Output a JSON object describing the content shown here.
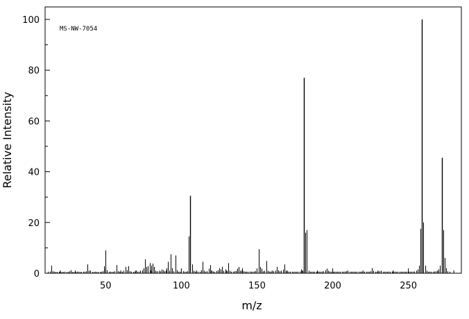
{
  "chart_data": {
    "type": "bar",
    "title": "",
    "annotation": "MS-NW-7054",
    "xlabel": "m/z",
    "ylabel": "Relative Intensity",
    "xlim": [
      10,
      285
    ],
    "ylim": [
      0,
      100
    ],
    "x_ticks": [
      50,
      100,
      150,
      200,
      250
    ],
    "y_ticks": [
      0,
      20,
      40,
      60,
      80,
      100
    ],
    "grid": false,
    "series": [
      {
        "values": [
          [
            12,
            0.6
          ],
          [
            13,
            0.7
          ],
          [
            14,
            3.0
          ],
          [
            15,
            0.8
          ],
          [
            16,
            0.6
          ],
          [
            17,
            0.5
          ],
          [
            18,
            0.5
          ],
          [
            19,
            0.5
          ],
          [
            20,
            0.6
          ],
          [
            21,
            0.5
          ],
          [
            22,
            0.5
          ],
          [
            23,
            0.6
          ],
          [
            24,
            0.5
          ],
          [
            25,
            0.5
          ],
          [
            26,
            0.8
          ],
          [
            27,
            1.2
          ],
          [
            28,
            0.5
          ],
          [
            29,
            0.5
          ],
          [
            30,
            0.5
          ],
          [
            31,
            0.6
          ],
          [
            32,
            0.6
          ],
          [
            33,
            0.5
          ],
          [
            34,
            0.5
          ],
          [
            35,
            0.6
          ],
          [
            36,
            0.6
          ],
          [
            37,
            0.8
          ],
          [
            38,
            3.5
          ],
          [
            39,
            1.0
          ],
          [
            40,
            0.6
          ],
          [
            41,
            0.5
          ],
          [
            42,
            0.5
          ],
          [
            43,
            0.6
          ],
          [
            44,
            0.5
          ],
          [
            45,
            0.5
          ],
          [
            46,
            0.5
          ],
          [
            47,
            0.6
          ],
          [
            48,
            0.8
          ],
          [
            49,
            2.8
          ],
          [
            50,
            9.0
          ],
          [
            51,
            1.2
          ],
          [
            52,
            0.6
          ],
          [
            53,
            0.6
          ],
          [
            54,
            0.5
          ],
          [
            55,
            0.6
          ],
          [
            56,
            0.8
          ],
          [
            57,
            3.2
          ],
          [
            58,
            0.8
          ],
          [
            59,
            0.6
          ],
          [
            60,
            0.5
          ],
          [
            61,
            0.6
          ],
          [
            62,
            1.0
          ],
          [
            63,
            2.5
          ],
          [
            64,
            1.2
          ],
          [
            65,
            2.8
          ],
          [
            66,
            0.8
          ],
          [
            67,
            0.6
          ],
          [
            68,
            0.5
          ],
          [
            69,
            0.7
          ],
          [
            70,
            1.0
          ],
          [
            71,
            0.6
          ],
          [
            72,
            0.6
          ],
          [
            73,
            1.0
          ],
          [
            74,
            1.2
          ],
          [
            75,
            2.0
          ],
          [
            76,
            5.5
          ],
          [
            77,
            2.5
          ],
          [
            78,
            2.8
          ],
          [
            79,
            4.0
          ],
          [
            80,
            3.0
          ],
          [
            81,
            3.8
          ],
          [
            82,
            2.5
          ],
          [
            83,
            1.0
          ],
          [
            84,
            0.8
          ],
          [
            85,
            1.0
          ],
          [
            86,
            0.8
          ],
          [
            87,
            1.5
          ],
          [
            88,
            1.2
          ],
          [
            89,
            0.8
          ],
          [
            90,
            2.0
          ],
          [
            91,
            4.5
          ],
          [
            92,
            1.0
          ],
          [
            93,
            7.5
          ],
          [
            94,
            2.0
          ],
          [
            95,
            0.8
          ],
          [
            96,
            7.0
          ],
          [
            97,
            1.2
          ],
          [
            98,
            0.6
          ],
          [
            99,
            0.6
          ],
          [
            100,
            0.7
          ],
          [
            101,
            0.8
          ],
          [
            102,
            0.6
          ],
          [
            103,
            0.6
          ],
          [
            104,
            0.8
          ],
          [
            105,
            14.5
          ],
          [
            106,
            30.5
          ],
          [
            107,
            3.5
          ],
          [
            108,
            1.0
          ],
          [
            109,
            0.6
          ],
          [
            110,
            0.6
          ],
          [
            111,
            0.6
          ],
          [
            112,
            0.6
          ],
          [
            113,
            1.2
          ],
          [
            114,
            4.5
          ],
          [
            115,
            1.0
          ],
          [
            116,
            0.6
          ],
          [
            117,
            0.8
          ],
          [
            118,
            1.8
          ],
          [
            119,
            3.2
          ],
          [
            120,
            1.0
          ],
          [
            121,
            0.7
          ],
          [
            122,
            0.6
          ],
          [
            123,
            0.9
          ],
          [
            124,
            1.2
          ],
          [
            125,
            2.0
          ],
          [
            126,
            1.5
          ],
          [
            127,
            2.5
          ],
          [
            128,
            1.0
          ],
          [
            129,
            1.5
          ],
          [
            130,
            0.8
          ],
          [
            131,
            4.0
          ],
          [
            132,
            1.0
          ],
          [
            133,
            0.6
          ],
          [
            134,
            0.6
          ],
          [
            135,
            0.8
          ],
          [
            136,
            1.0
          ],
          [
            137,
            1.8
          ],
          [
            138,
            2.5
          ],
          [
            139,
            1.0
          ],
          [
            140,
            2.0
          ],
          [
            141,
            0.8
          ],
          [
            142,
            0.6
          ],
          [
            143,
            0.6
          ],
          [
            144,
            0.6
          ],
          [
            145,
            0.7
          ],
          [
            146,
            0.6
          ],
          [
            147,
            0.6
          ],
          [
            148,
            0.7
          ],
          [
            149,
            0.9
          ],
          [
            150,
            1.2
          ],
          [
            151,
            9.5
          ],
          [
            152,
            2.5
          ],
          [
            153,
            1.8
          ],
          [
            154,
            0.8
          ],
          [
            155,
            1.0
          ],
          [
            156,
            4.8
          ],
          [
            157,
            1.0
          ],
          [
            158,
            0.7
          ],
          [
            159,
            0.6
          ],
          [
            160,
            0.7
          ],
          [
            161,
            0.8
          ],
          [
            162,
            1.0
          ],
          [
            163,
            2.5
          ],
          [
            164,
            1.2
          ],
          [
            165,
            0.8
          ],
          [
            166,
            1.0
          ],
          [
            167,
            1.5
          ],
          [
            168,
            3.5
          ],
          [
            169,
            1.0
          ],
          [
            170,
            0.6
          ],
          [
            171,
            0.6
          ],
          [
            172,
            0.6
          ],
          [
            173,
            0.6
          ],
          [
            174,
            0.6
          ],
          [
            175,
            0.6
          ],
          [
            176,
            0.6
          ],
          [
            177,
            0.6
          ],
          [
            178,
            0.7
          ],
          [
            179,
            1.5
          ],
          [
            180,
            1.0
          ],
          [
            181,
            77.0
          ],
          [
            182,
            16.0
          ],
          [
            183,
            17.0
          ],
          [
            184,
            1.0
          ],
          [
            185,
            0.6
          ],
          [
            186,
            0.6
          ],
          [
            187,
            0.6
          ],
          [
            188,
            0.6
          ],
          [
            189,
            0.6
          ],
          [
            190,
            0.6
          ],
          [
            191,
            0.6
          ],
          [
            192,
            0.6
          ],
          [
            193,
            0.7
          ],
          [
            194,
            0.8
          ],
          [
            195,
            1.2
          ],
          [
            196,
            1.8
          ],
          [
            197,
            1.0
          ],
          [
            198,
            0.7
          ],
          [
            199,
            0.6
          ],
          [
            200,
            0.6
          ],
          [
            201,
            0.6
          ],
          [
            202,
            0.6
          ],
          [
            203,
            0.6
          ],
          [
            204,
            0.6
          ],
          [
            205,
            0.6
          ],
          [
            206,
            0.6
          ],
          [
            207,
            0.6
          ],
          [
            208,
            0.7
          ],
          [
            209,
            0.8
          ],
          [
            210,
            0.6
          ],
          [
            211,
            0.6
          ],
          [
            212,
            0.6
          ],
          [
            213,
            0.6
          ],
          [
            214,
            0.6
          ],
          [
            215,
            0.6
          ],
          [
            216,
            0.6
          ],
          [
            217,
            0.6
          ],
          [
            218,
            0.6
          ],
          [
            219,
            0.6
          ],
          [
            220,
            0.6
          ],
          [
            221,
            0.6
          ],
          [
            222,
            0.6
          ],
          [
            223,
            0.6
          ],
          [
            224,
            0.6
          ],
          [
            225,
            0.8
          ],
          [
            226,
            2.0
          ],
          [
            227,
            1.0
          ],
          [
            228,
            0.6
          ],
          [
            229,
            0.6
          ],
          [
            230,
            0.6
          ],
          [
            231,
            0.8
          ],
          [
            232,
            1.0
          ],
          [
            233,
            0.6
          ],
          [
            234,
            0.6
          ],
          [
            235,
            0.6
          ],
          [
            236,
            0.6
          ],
          [
            237,
            0.6
          ],
          [
            238,
            0.6
          ],
          [
            239,
            0.6
          ],
          [
            240,
            0.6
          ],
          [
            241,
            0.6
          ],
          [
            242,
            0.6
          ],
          [
            243,
            0.6
          ],
          [
            244,
            0.6
          ],
          [
            245,
            0.6
          ],
          [
            246,
            0.6
          ],
          [
            247,
            0.6
          ],
          [
            248,
            0.6
          ],
          [
            249,
            0.6
          ],
          [
            250,
            0.6
          ],
          [
            251,
            0.6
          ],
          [
            252,
            0.6
          ],
          [
            253,
            0.6
          ],
          [
            254,
            0.7
          ],
          [
            255,
            1.0
          ],
          [
            256,
            1.5
          ],
          [
            257,
            3.0
          ],
          [
            258,
            17.5
          ],
          [
            259,
            100.0
          ],
          [
            260,
            20.0
          ],
          [
            261,
            3.0
          ],
          [
            262,
            1.0
          ],
          [
            263,
            0.6
          ],
          [
            264,
            0.6
          ],
          [
            265,
            0.6
          ],
          [
            266,
            0.6
          ],
          [
            267,
            0.7
          ],
          [
            268,
            0.8
          ],
          [
            269,
            1.0
          ],
          [
            270,
            1.5
          ],
          [
            271,
            3.0
          ],
          [
            272,
            45.5
          ],
          [
            273,
            17.0
          ],
          [
            274,
            6.0
          ],
          [
            275,
            2.0
          ],
          [
            276,
            0.8
          ],
          [
            277,
            0.6
          ]
        ]
      }
    ]
  }
}
